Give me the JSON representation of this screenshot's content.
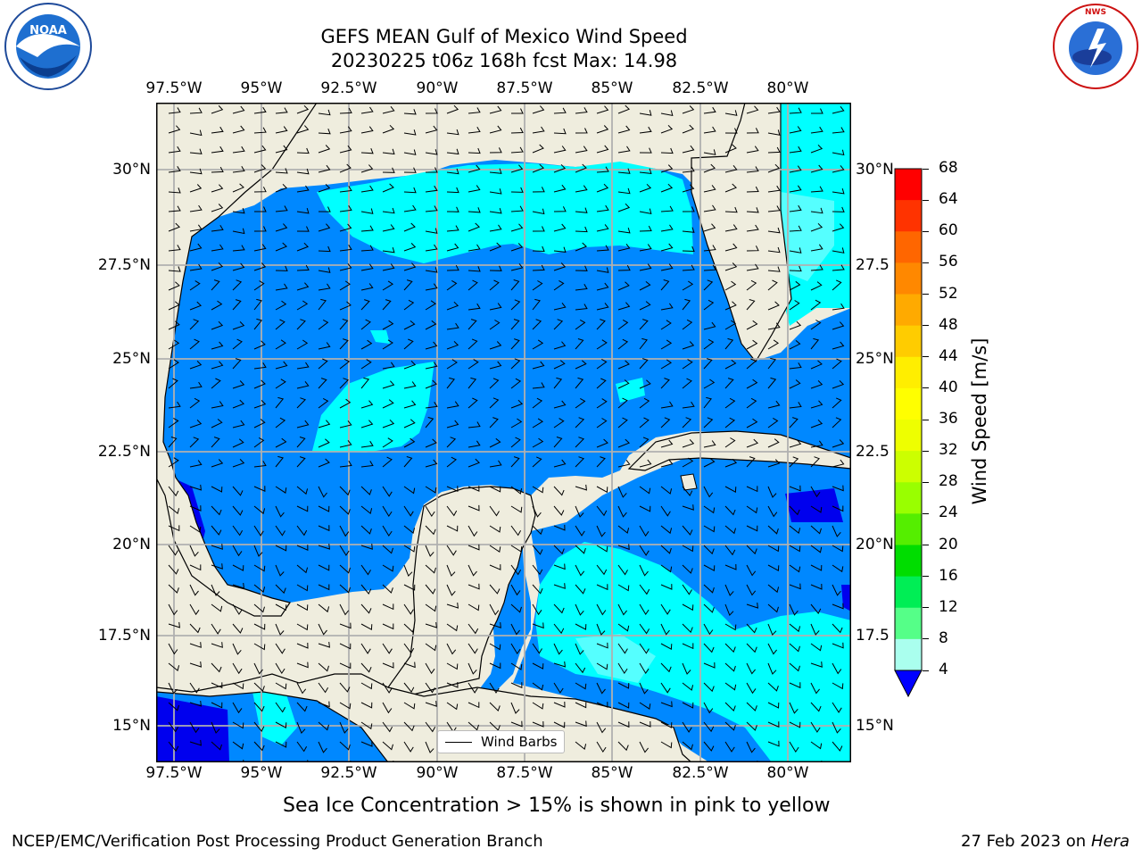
{
  "title_line1": "GEFS MEAN Gulf of Mexico Wind Speed",
  "title_line2": "20230225 t06z 168h fcst   Max: 14.98",
  "lon_ticks": [
    "97.5°W",
    "95°W",
    "92.5°W",
    "90°W",
    "87.5°W",
    "85°W",
    "82.5°W",
    "80°W"
  ],
  "lat_ticks_left": [
    "30°N",
    "27.5°N",
    "25°N",
    "22.5°N",
    "20°N",
    "17.5°N",
    "15°N"
  ],
  "lat_ticks_right": [
    "30°N",
    "27.5",
    "25°N",
    "22.5",
    "20°N",
    "17.5",
    "15°N"
  ],
  "legend_label": "Wind Barbs",
  "colorbar": {
    "label": "Wind Speed [m/s]",
    "ticks": [
      "68",
      "64",
      "60",
      "56",
      "52",
      "48",
      "44",
      "40",
      "36",
      "32",
      "28",
      "24",
      "20",
      "16",
      "12",
      "8",
      "4"
    ],
    "colors": [
      "#ff0000",
      "#ff3300",
      "#ff6600",
      "#ff8800",
      "#ffaa00",
      "#ffcc00",
      "#ffee00",
      "#ffff00",
      "#eeff00",
      "#ccff00",
      "#99ff00",
      "#55ee00",
      "#00dd00",
      "#00ee55",
      "#55ff88",
      "#aaffee",
      "#55ffff",
      "#00ffff",
      "#0088ff"
    ],
    "extend_color": "#0000ff"
  },
  "colors": {
    "land": "#efedde",
    "water_dark": "#0088ff",
    "water_light": "#00ffff",
    "water_pale": "#55ffff",
    "water_deep": "#0000ee",
    "grid": "#b0b0b0"
  },
  "note": "Sea Ice Concentration > 15% is shown in pink to yellow",
  "footer_left": "NCEP/EMC/Verification Post Processing Product Generation Branch",
  "footer_date": "27 Feb 2023 on",
  "footer_host": "Hera",
  "logos": {
    "noaa_text": "NOAA",
    "nws_text": "NATIONAL WEATHER SERVICE"
  }
}
